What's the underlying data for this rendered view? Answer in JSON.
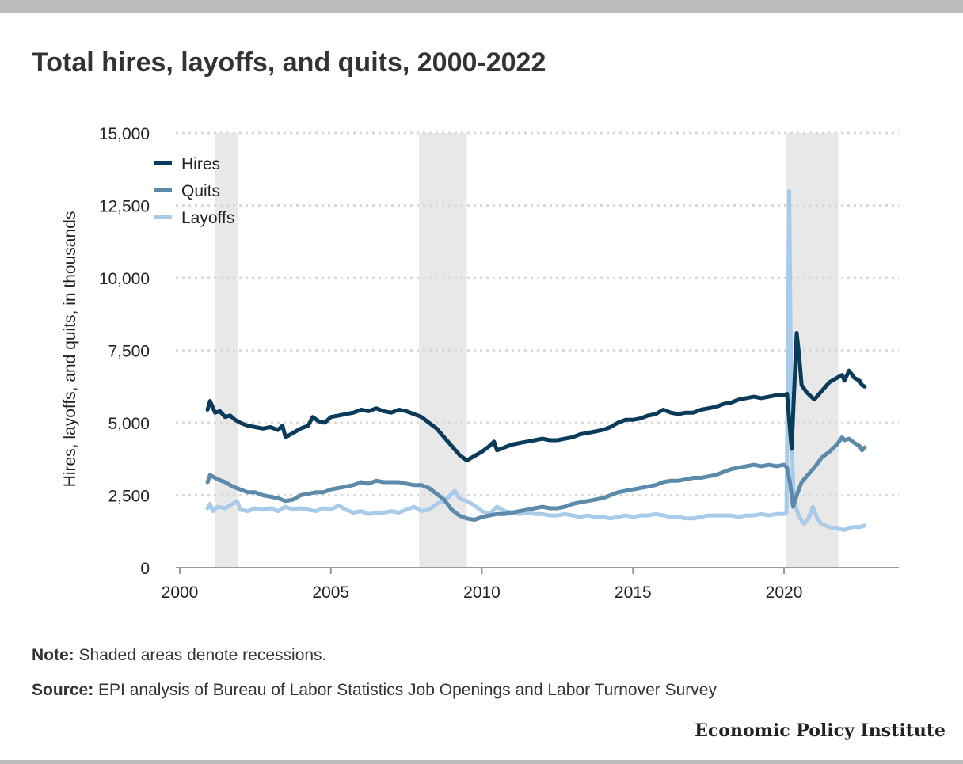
{
  "title": "Total hires, layoffs, and quits, 2000-2022",
  "note_label": "Note:",
  "note_text": " Shaded areas denote recessions.",
  "source_label": "Source:",
  "source_text": " EPI analysis of Bureau of Labor Statistics Job Openings and Labor Turnover Survey",
  "brand": "Economic Policy Institute",
  "colors": {
    "hires": "#0b3b5a",
    "quits": "#5b8aaa",
    "layoffs": "#a9cbea",
    "recession": "#e8e8e8",
    "grid": "#d9d9d9"
  },
  "chart_data": {
    "type": "line",
    "title": "Total hires, layoffs, and quits, 2000-2022",
    "xlabel": "",
    "ylabel": "Hires, layoffs, and quits, in thousands",
    "xlim": [
      2000,
      2023.8
    ],
    "ylim": [
      0,
      15000
    ],
    "x_ticks": [
      2000,
      2005,
      2010,
      2015,
      2020
    ],
    "x_tick_labels": [
      "2000",
      "2005",
      "2010",
      "2015",
      "2020"
    ],
    "y_ticks": [
      0,
      2500,
      5000,
      7500,
      10000,
      12500,
      15000
    ],
    "y_tick_labels": [
      "0",
      "2,500",
      "5,000",
      "7,500",
      "10,000",
      "12,500",
      "15,000"
    ],
    "grid": "horizontal dotted",
    "legend_position": "top-left",
    "recessions": [
      [
        2001.17,
        2001.92
      ],
      [
        2007.92,
        2009.5
      ],
      [
        2020.08,
        2021.8
      ]
    ],
    "series": [
      {
        "name": "Hires",
        "points": [
          [
            2000.92,
            5450
          ],
          [
            2001.0,
            5750
          ],
          [
            2001.17,
            5350
          ],
          [
            2001.33,
            5400
          ],
          [
            2001.5,
            5200
          ],
          [
            2001.67,
            5250
          ],
          [
            2001.83,
            5100
          ],
          [
            2002.0,
            5000
          ],
          [
            2002.25,
            4900
          ],
          [
            2002.5,
            4850
          ],
          [
            2002.75,
            4800
          ],
          [
            2003.0,
            4850
          ],
          [
            2003.25,
            4750
          ],
          [
            2003.4,
            4900
          ],
          [
            2003.5,
            4500
          ],
          [
            2003.75,
            4650
          ],
          [
            2004.0,
            4800
          ],
          [
            2004.25,
            4900
          ],
          [
            2004.4,
            5200
          ],
          [
            2004.6,
            5050
          ],
          [
            2004.8,
            5000
          ],
          [
            2005.0,
            5200
          ],
          [
            2005.25,
            5250
          ],
          [
            2005.5,
            5300
          ],
          [
            2005.75,
            5350
          ],
          [
            2006.0,
            5450
          ],
          [
            2006.25,
            5400
          ],
          [
            2006.5,
            5500
          ],
          [
            2006.75,
            5400
          ],
          [
            2007.0,
            5350
          ],
          [
            2007.25,
            5450
          ],
          [
            2007.5,
            5400
          ],
          [
            2007.75,
            5300
          ],
          [
            2008.0,
            5200
          ],
          [
            2008.25,
            5000
          ],
          [
            2008.5,
            4800
          ],
          [
            2008.75,
            4500
          ],
          [
            2009.0,
            4200
          ],
          [
            2009.25,
            3900
          ],
          [
            2009.5,
            3700
          ],
          [
            2009.75,
            3850
          ],
          [
            2010.0,
            4000
          ],
          [
            2010.25,
            4200
          ],
          [
            2010.4,
            4350
          ],
          [
            2010.5,
            4050
          ],
          [
            2010.75,
            4150
          ],
          [
            2011.0,
            4250
          ],
          [
            2011.25,
            4300
          ],
          [
            2011.5,
            4350
          ],
          [
            2011.75,
            4400
          ],
          [
            2012.0,
            4450
          ],
          [
            2012.25,
            4400
          ],
          [
            2012.5,
            4400
          ],
          [
            2012.75,
            4450
          ],
          [
            2013.0,
            4500
          ],
          [
            2013.25,
            4600
          ],
          [
            2013.5,
            4650
          ],
          [
            2013.75,
            4700
          ],
          [
            2014.0,
            4750
          ],
          [
            2014.25,
            4850
          ],
          [
            2014.5,
            5000
          ],
          [
            2014.75,
            5100
          ],
          [
            2015.0,
            5100
          ],
          [
            2015.25,
            5150
          ],
          [
            2015.5,
            5250
          ],
          [
            2015.75,
            5300
          ],
          [
            2016.0,
            5450
          ],
          [
            2016.25,
            5350
          ],
          [
            2016.5,
            5300
          ],
          [
            2016.75,
            5350
          ],
          [
            2017.0,
            5350
          ],
          [
            2017.25,
            5450
          ],
          [
            2017.5,
            5500
          ],
          [
            2017.75,
            5550
          ],
          [
            2018.0,
            5650
          ],
          [
            2018.25,
            5700
          ],
          [
            2018.5,
            5800
          ],
          [
            2018.75,
            5850
          ],
          [
            2019.0,
            5900
          ],
          [
            2019.25,
            5850
          ],
          [
            2019.5,
            5900
          ],
          [
            2019.75,
            5950
          ],
          [
            2020.0,
            5950
          ],
          [
            2020.1,
            6000
          ],
          [
            2020.17,
            5100
          ],
          [
            2020.25,
            4100
          ],
          [
            2020.33,
            6000
          ],
          [
            2020.42,
            8100
          ],
          [
            2020.5,
            7300
          ],
          [
            2020.58,
            6300
          ],
          [
            2020.75,
            6050
          ],
          [
            2021.0,
            5800
          ],
          [
            2021.25,
            6100
          ],
          [
            2021.5,
            6400
          ],
          [
            2021.75,
            6550
          ],
          [
            2021.92,
            6650
          ],
          [
            2022.0,
            6450
          ],
          [
            2022.15,
            6800
          ],
          [
            2022.33,
            6550
          ],
          [
            2022.5,
            6450
          ],
          [
            2022.58,
            6300
          ],
          [
            2022.67,
            6250
          ]
        ]
      },
      {
        "name": "Quits",
        "points": [
          [
            2000.92,
            2950
          ],
          [
            2001.0,
            3200
          ],
          [
            2001.25,
            3050
          ],
          [
            2001.5,
            2950
          ],
          [
            2001.75,
            2800
          ],
          [
            2002.0,
            2700
          ],
          [
            2002.25,
            2600
          ],
          [
            2002.5,
            2600
          ],
          [
            2002.75,
            2500
          ],
          [
            2003.0,
            2450
          ],
          [
            2003.25,
            2400
          ],
          [
            2003.5,
            2300
          ],
          [
            2003.75,
            2350
          ],
          [
            2004.0,
            2500
          ],
          [
            2004.25,
            2550
          ],
          [
            2004.5,
            2600
          ],
          [
            2004.75,
            2600
          ],
          [
            2005.0,
            2700
          ],
          [
            2005.25,
            2750
          ],
          [
            2005.5,
            2800
          ],
          [
            2005.75,
            2850
          ],
          [
            2006.0,
            2950
          ],
          [
            2006.25,
            2900
          ],
          [
            2006.5,
            3000
          ],
          [
            2006.75,
            2950
          ],
          [
            2007.0,
            2950
          ],
          [
            2007.25,
            2950
          ],
          [
            2007.5,
            2900
          ],
          [
            2007.75,
            2850
          ],
          [
            2008.0,
            2850
          ],
          [
            2008.25,
            2750
          ],
          [
            2008.5,
            2550
          ],
          [
            2008.75,
            2350
          ],
          [
            2009.0,
            2000
          ],
          [
            2009.25,
            1800
          ],
          [
            2009.5,
            1700
          ],
          [
            2009.75,
            1650
          ],
          [
            2010.0,
            1750
          ],
          [
            2010.25,
            1800
          ],
          [
            2010.5,
            1850
          ],
          [
            2010.75,
            1850
          ],
          [
            2011.0,
            1900
          ],
          [
            2011.25,
            1950
          ],
          [
            2011.5,
            2000
          ],
          [
            2011.75,
            2050
          ],
          [
            2012.0,
            2100
          ],
          [
            2012.25,
            2050
          ],
          [
            2012.5,
            2050
          ],
          [
            2012.75,
            2100
          ],
          [
            2013.0,
            2200
          ],
          [
            2013.25,
            2250
          ],
          [
            2013.5,
            2300
          ],
          [
            2013.75,
            2350
          ],
          [
            2014.0,
            2400
          ],
          [
            2014.25,
            2500
          ],
          [
            2014.5,
            2600
          ],
          [
            2014.75,
            2650
          ],
          [
            2015.0,
            2700
          ],
          [
            2015.25,
            2750
          ],
          [
            2015.5,
            2800
          ],
          [
            2015.75,
            2850
          ],
          [
            2016.0,
            2950
          ],
          [
            2016.25,
            3000
          ],
          [
            2016.5,
            3000
          ],
          [
            2016.75,
            3050
          ],
          [
            2017.0,
            3100
          ],
          [
            2017.25,
            3100
          ],
          [
            2017.5,
            3150
          ],
          [
            2017.75,
            3200
          ],
          [
            2018.0,
            3300
          ],
          [
            2018.25,
            3400
          ],
          [
            2018.5,
            3450
          ],
          [
            2018.75,
            3500
          ],
          [
            2019.0,
            3550
          ],
          [
            2019.25,
            3500
          ],
          [
            2019.5,
            3550
          ],
          [
            2019.75,
            3500
          ],
          [
            2020.0,
            3550
          ],
          [
            2020.1,
            3450
          ],
          [
            2020.2,
            2900
          ],
          [
            2020.3,
            2100
          ],
          [
            2020.42,
            2500
          ],
          [
            2020.58,
            2950
          ],
          [
            2020.75,
            3150
          ],
          [
            2021.0,
            3450
          ],
          [
            2021.25,
            3800
          ],
          [
            2021.5,
            4000
          ],
          [
            2021.75,
            4250
          ],
          [
            2021.92,
            4500
          ],
          [
            2022.0,
            4400
          ],
          [
            2022.15,
            4450
          ],
          [
            2022.33,
            4300
          ],
          [
            2022.5,
            4200
          ],
          [
            2022.58,
            4050
          ],
          [
            2022.67,
            4150
          ]
        ]
      },
      {
        "name": "Layoffs",
        "points": [
          [
            2000.92,
            2050
          ],
          [
            2001.0,
            2200
          ],
          [
            2001.1,
            1950
          ],
          [
            2001.25,
            2100
          ],
          [
            2001.5,
            2050
          ],
          [
            2001.75,
            2200
          ],
          [
            2001.9,
            2300
          ],
          [
            2002.0,
            2000
          ],
          [
            2002.25,
            1950
          ],
          [
            2002.5,
            2050
          ],
          [
            2002.75,
            2000
          ],
          [
            2003.0,
            2050
          ],
          [
            2003.25,
            1950
          ],
          [
            2003.5,
            2100
          ],
          [
            2003.75,
            2000
          ],
          [
            2004.0,
            2050
          ],
          [
            2004.25,
            2000
          ],
          [
            2004.5,
            1950
          ],
          [
            2004.75,
            2050
          ],
          [
            2005.0,
            2000
          ],
          [
            2005.25,
            2150
          ],
          [
            2005.5,
            2000
          ],
          [
            2005.75,
            1900
          ],
          [
            2006.0,
            1950
          ],
          [
            2006.25,
            1850
          ],
          [
            2006.5,
            1900
          ],
          [
            2006.75,
            1900
          ],
          [
            2007.0,
            1950
          ],
          [
            2007.25,
            1900
          ],
          [
            2007.5,
            2000
          ],
          [
            2007.75,
            2100
          ],
          [
            2008.0,
            1950
          ],
          [
            2008.25,
            2000
          ],
          [
            2008.5,
            2200
          ],
          [
            2008.75,
            2300
          ],
          [
            2009.0,
            2550
          ],
          [
            2009.1,
            2650
          ],
          [
            2009.25,
            2400
          ],
          [
            2009.5,
            2300
          ],
          [
            2009.75,
            2150
          ],
          [
            2010.0,
            1950
          ],
          [
            2010.25,
            1850
          ],
          [
            2010.5,
            2100
          ],
          [
            2010.75,
            1950
          ],
          [
            2011.0,
            1900
          ],
          [
            2011.25,
            1850
          ],
          [
            2011.5,
            1900
          ],
          [
            2011.75,
            1850
          ],
          [
            2012.0,
            1850
          ],
          [
            2012.25,
            1800
          ],
          [
            2012.5,
            1800
          ],
          [
            2012.75,
            1850
          ],
          [
            2013.0,
            1800
          ],
          [
            2013.25,
            1750
          ],
          [
            2013.5,
            1800
          ],
          [
            2013.75,
            1750
          ],
          [
            2014.0,
            1750
          ],
          [
            2014.25,
            1700
          ],
          [
            2014.5,
            1750
          ],
          [
            2014.75,
            1800
          ],
          [
            2015.0,
            1750
          ],
          [
            2015.25,
            1800
          ],
          [
            2015.5,
            1800
          ],
          [
            2015.75,
            1850
          ],
          [
            2016.0,
            1800
          ],
          [
            2016.25,
            1750
          ],
          [
            2016.5,
            1750
          ],
          [
            2016.75,
            1700
          ],
          [
            2017.0,
            1700
          ],
          [
            2017.25,
            1750
          ],
          [
            2017.5,
            1800
          ],
          [
            2017.75,
            1800
          ],
          [
            2018.0,
            1800
          ],
          [
            2018.25,
            1800
          ],
          [
            2018.5,
            1750
          ],
          [
            2018.75,
            1800
          ],
          [
            2019.0,
            1800
          ],
          [
            2019.25,
            1850
          ],
          [
            2019.5,
            1800
          ],
          [
            2019.75,
            1850
          ],
          [
            2020.0,
            1850
          ],
          [
            2020.08,
            1900
          ],
          [
            2020.17,
            13000
          ],
          [
            2020.25,
            4300
          ],
          [
            2020.33,
            2300
          ],
          [
            2020.5,
            1750
          ],
          [
            2020.67,
            1500
          ],
          [
            2020.83,
            1750
          ],
          [
            2020.95,
            2100
          ],
          [
            2021.1,
            1700
          ],
          [
            2021.25,
            1500
          ],
          [
            2021.5,
            1400
          ],
          [
            2021.75,
            1350
          ],
          [
            2022.0,
            1300
          ],
          [
            2022.25,
            1400
          ],
          [
            2022.5,
            1400
          ],
          [
            2022.67,
            1450
          ]
        ]
      }
    ]
  }
}
